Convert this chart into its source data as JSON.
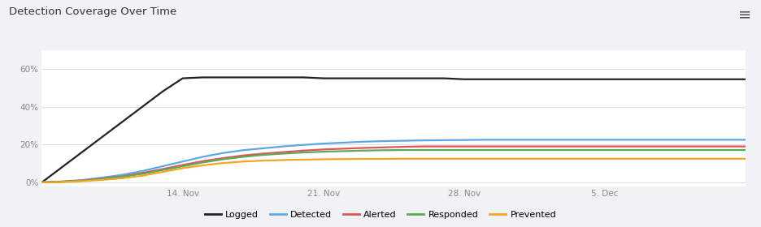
{
  "title": "Detection Coverage Over Time",
  "background_color": "#f0f2f5",
  "plot_bg_color": "#ffffff",
  "x_ticks_labels": [
    "14. Nov",
    "21. Nov",
    "28. Nov",
    "5. Dec"
  ],
  "y_ticks": [
    0,
    20,
    40,
    60
  ],
  "y_tick_labels": [
    "0%",
    "20%",
    "40%",
    "60%"
  ],
  "x_dates": [
    0,
    7,
    14,
    21,
    28,
    35
  ],
  "x_tick_days": [
    7,
    14,
    21,
    28
  ],
  "total_days": 35,
  "series": {
    "Logged": [
      0.0,
      8.0,
      16.0,
      24.0,
      32.0,
      40.0,
      48.0,
      55.0,
      55.5,
      55.5,
      55.5,
      55.5,
      55.5,
      55.5,
      55.0,
      55.0,
      55.0,
      55.0,
      55.0,
      55.0,
      55.0,
      54.5,
      54.5,
      54.5,
      54.5,
      54.5,
      54.5,
      54.5,
      54.5,
      54.5,
      54.5,
      54.5,
      54.5,
      54.5,
      54.5,
      54.5
    ],
    "Detected": [
      0.0,
      0.5,
      1.2,
      2.5,
      4.0,
      6.0,
      8.5,
      11.0,
      13.5,
      15.5,
      17.0,
      18.0,
      19.0,
      19.8,
      20.5,
      21.0,
      21.5,
      21.8,
      22.0,
      22.2,
      22.3,
      22.4,
      22.5,
      22.5,
      22.5,
      22.5,
      22.5,
      22.5,
      22.5,
      22.5,
      22.5,
      22.5,
      22.5,
      22.5,
      22.5,
      22.5
    ],
    "Alerted": [
      0.0,
      0.4,
      1.0,
      2.0,
      3.2,
      5.0,
      7.0,
      9.2,
      11.2,
      12.8,
      14.2,
      15.2,
      16.0,
      16.8,
      17.4,
      17.8,
      18.2,
      18.5,
      18.8,
      19.0,
      19.0,
      19.0,
      19.0,
      19.0,
      19.0,
      19.0,
      19.0,
      19.0,
      19.0,
      19.0,
      19.0,
      19.0,
      19.0,
      19.0,
      19.0,
      19.0
    ],
    "Responded": [
      0.0,
      0.3,
      0.9,
      1.8,
      3.0,
      4.5,
      6.5,
      8.5,
      10.5,
      12.2,
      13.5,
      14.5,
      15.2,
      15.8,
      16.2,
      16.5,
      16.8,
      17.0,
      17.1,
      17.1,
      17.1,
      17.1,
      17.1,
      17.1,
      17.1,
      17.1,
      17.1,
      17.1,
      17.1,
      17.1,
      17.1,
      17.1,
      17.1,
      17.1,
      17.1,
      17.1
    ],
    "Prevented": [
      0.0,
      0.2,
      0.6,
      1.3,
      2.2,
      3.5,
      5.5,
      7.5,
      9.0,
      10.2,
      11.0,
      11.5,
      11.8,
      12.0,
      12.2,
      12.3,
      12.4,
      12.4,
      12.5,
      12.5,
      12.5,
      12.5,
      12.5,
      12.5,
      12.5,
      12.5,
      12.5,
      12.5,
      12.5,
      12.5,
      12.5,
      12.5,
      12.5,
      12.5,
      12.5,
      12.5
    ]
  },
  "colors": {
    "Logged": "#222222",
    "Detected": "#5ba8e5",
    "Alerted": "#e05555",
    "Responded": "#5aaa5a",
    "Prevented": "#f5a520"
  },
  "line_width": 1.6,
  "legend_items": [
    "Logged",
    "Detected",
    "Alerted",
    "Responded",
    "Prevented"
  ],
  "menu_icon_color": "#555555"
}
